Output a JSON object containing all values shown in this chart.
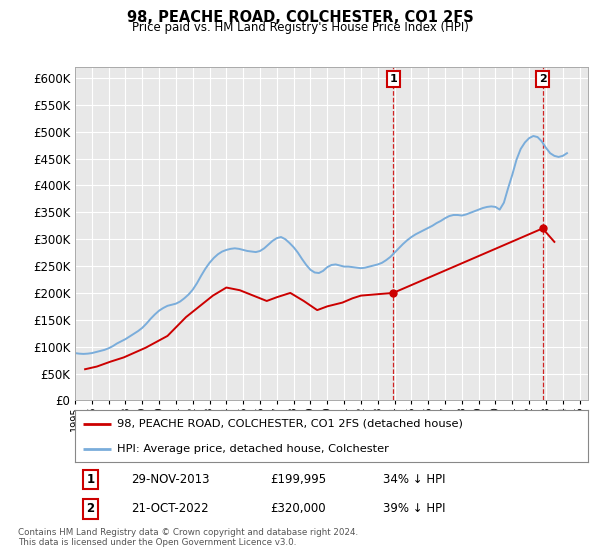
{
  "title": "98, PEACHE ROAD, COLCHESTER, CO1 2FS",
  "subtitle": "Price paid vs. HM Land Registry's House Price Index (HPI)",
  "ylim": [
    0,
    620000
  ],
  "yticks": [
    0,
    50000,
    100000,
    150000,
    200000,
    250000,
    300000,
    350000,
    400000,
    450000,
    500000,
    550000,
    600000
  ],
  "xlim_start": 1995.0,
  "xlim_end": 2025.5,
  "bg_color": "#ffffff",
  "plot_bg_color": "#e8e8e8",
  "grid_color": "#ffffff",
  "hpi_color": "#7aaddb",
  "price_color": "#cc0000",
  "marker1_x": 2013.92,
  "marker1_y": 199995,
  "marker2_x": 2022.8,
  "marker2_y": 320000,
  "legend_label_red": "98, PEACHE ROAD, COLCHESTER, CO1 2FS (detached house)",
  "legend_label_blue": "HPI: Average price, detached house, Colchester",
  "table_row1": [
    "1",
    "29-NOV-2013",
    "£199,995",
    "34% ↓ HPI"
  ],
  "table_row2": [
    "2",
    "21-OCT-2022",
    "£320,000",
    "39% ↓ HPI"
  ],
  "footer": "Contains HM Land Registry data © Crown copyright and database right 2024.\nThis data is licensed under the Open Government Licence v3.0.",
  "hpi_data_x": [
    1995.0,
    1995.25,
    1995.5,
    1995.75,
    1996.0,
    1996.25,
    1996.5,
    1996.75,
    1997.0,
    1997.25,
    1997.5,
    1997.75,
    1998.0,
    1998.25,
    1998.5,
    1998.75,
    1999.0,
    1999.25,
    1999.5,
    1999.75,
    2000.0,
    2000.25,
    2000.5,
    2000.75,
    2001.0,
    2001.25,
    2001.5,
    2001.75,
    2002.0,
    2002.25,
    2002.5,
    2002.75,
    2003.0,
    2003.25,
    2003.5,
    2003.75,
    2004.0,
    2004.25,
    2004.5,
    2004.75,
    2005.0,
    2005.25,
    2005.5,
    2005.75,
    2006.0,
    2006.25,
    2006.5,
    2006.75,
    2007.0,
    2007.25,
    2007.5,
    2007.75,
    2008.0,
    2008.25,
    2008.5,
    2008.75,
    2009.0,
    2009.25,
    2009.5,
    2009.75,
    2010.0,
    2010.25,
    2010.5,
    2010.75,
    2011.0,
    2011.25,
    2011.5,
    2011.75,
    2012.0,
    2012.25,
    2012.5,
    2012.75,
    2013.0,
    2013.25,
    2013.5,
    2013.75,
    2014.0,
    2014.25,
    2014.5,
    2014.75,
    2015.0,
    2015.25,
    2015.5,
    2015.75,
    2016.0,
    2016.25,
    2016.5,
    2016.75,
    2017.0,
    2017.25,
    2017.5,
    2017.75,
    2018.0,
    2018.25,
    2018.5,
    2018.75,
    2019.0,
    2019.25,
    2019.5,
    2019.75,
    2020.0,
    2020.25,
    2020.5,
    2020.75,
    2021.0,
    2021.25,
    2021.5,
    2021.75,
    2022.0,
    2022.25,
    2022.5,
    2022.75,
    2023.0,
    2023.25,
    2023.5,
    2023.75,
    2024.0,
    2024.25
  ],
  "hpi_data_y": [
    88000,
    87000,
    86500,
    87000,
    88000,
    90000,
    92000,
    94000,
    97000,
    101000,
    106000,
    110000,
    114000,
    119000,
    124000,
    129000,
    135000,
    143000,
    152000,
    160000,
    167000,
    172000,
    176000,
    178000,
    180000,
    184000,
    190000,
    197000,
    206000,
    218000,
    232000,
    245000,
    256000,
    265000,
    272000,
    277000,
    280000,
    282000,
    283000,
    282000,
    280000,
    278000,
    277000,
    276000,
    278000,
    283000,
    290000,
    297000,
    302000,
    304000,
    300000,
    293000,
    285000,
    275000,
    263000,
    252000,
    243000,
    238000,
    237000,
    241000,
    248000,
    252000,
    253000,
    251000,
    249000,
    249000,
    248000,
    247000,
    246000,
    247000,
    249000,
    251000,
    253000,
    256000,
    261000,
    267000,
    275000,
    283000,
    291000,
    298000,
    304000,
    309000,
    313000,
    317000,
    321000,
    325000,
    330000,
    334000,
    339000,
    343000,
    345000,
    345000,
    344000,
    346000,
    349000,
    352000,
    355000,
    358000,
    360000,
    361000,
    360000,
    355000,
    368000,
    395000,
    420000,
    448000,
    468000,
    480000,
    488000,
    492000,
    490000,
    482000,
    470000,
    460000,
    455000,
    453000,
    455000,
    460000
  ],
  "price_data_x": [
    1995.6,
    1996.3,
    1997.1,
    1997.9,
    1999.2,
    2000.5,
    2001.6,
    2002.4,
    2003.2,
    2004.0,
    2004.8,
    2005.6,
    2006.4,
    2007.0,
    2007.8,
    2008.6,
    2009.4,
    2010.0,
    2010.9,
    2011.5,
    2012.0,
    2013.92,
    2022.8,
    2023.5
  ],
  "price_data_y": [
    58000,
    63000,
    72000,
    80000,
    98000,
    120000,
    155000,
    175000,
    195000,
    210000,
    205000,
    195000,
    185000,
    192000,
    200000,
    185000,
    168000,
    175000,
    182000,
    190000,
    195000,
    199995,
    320000,
    295000
  ]
}
